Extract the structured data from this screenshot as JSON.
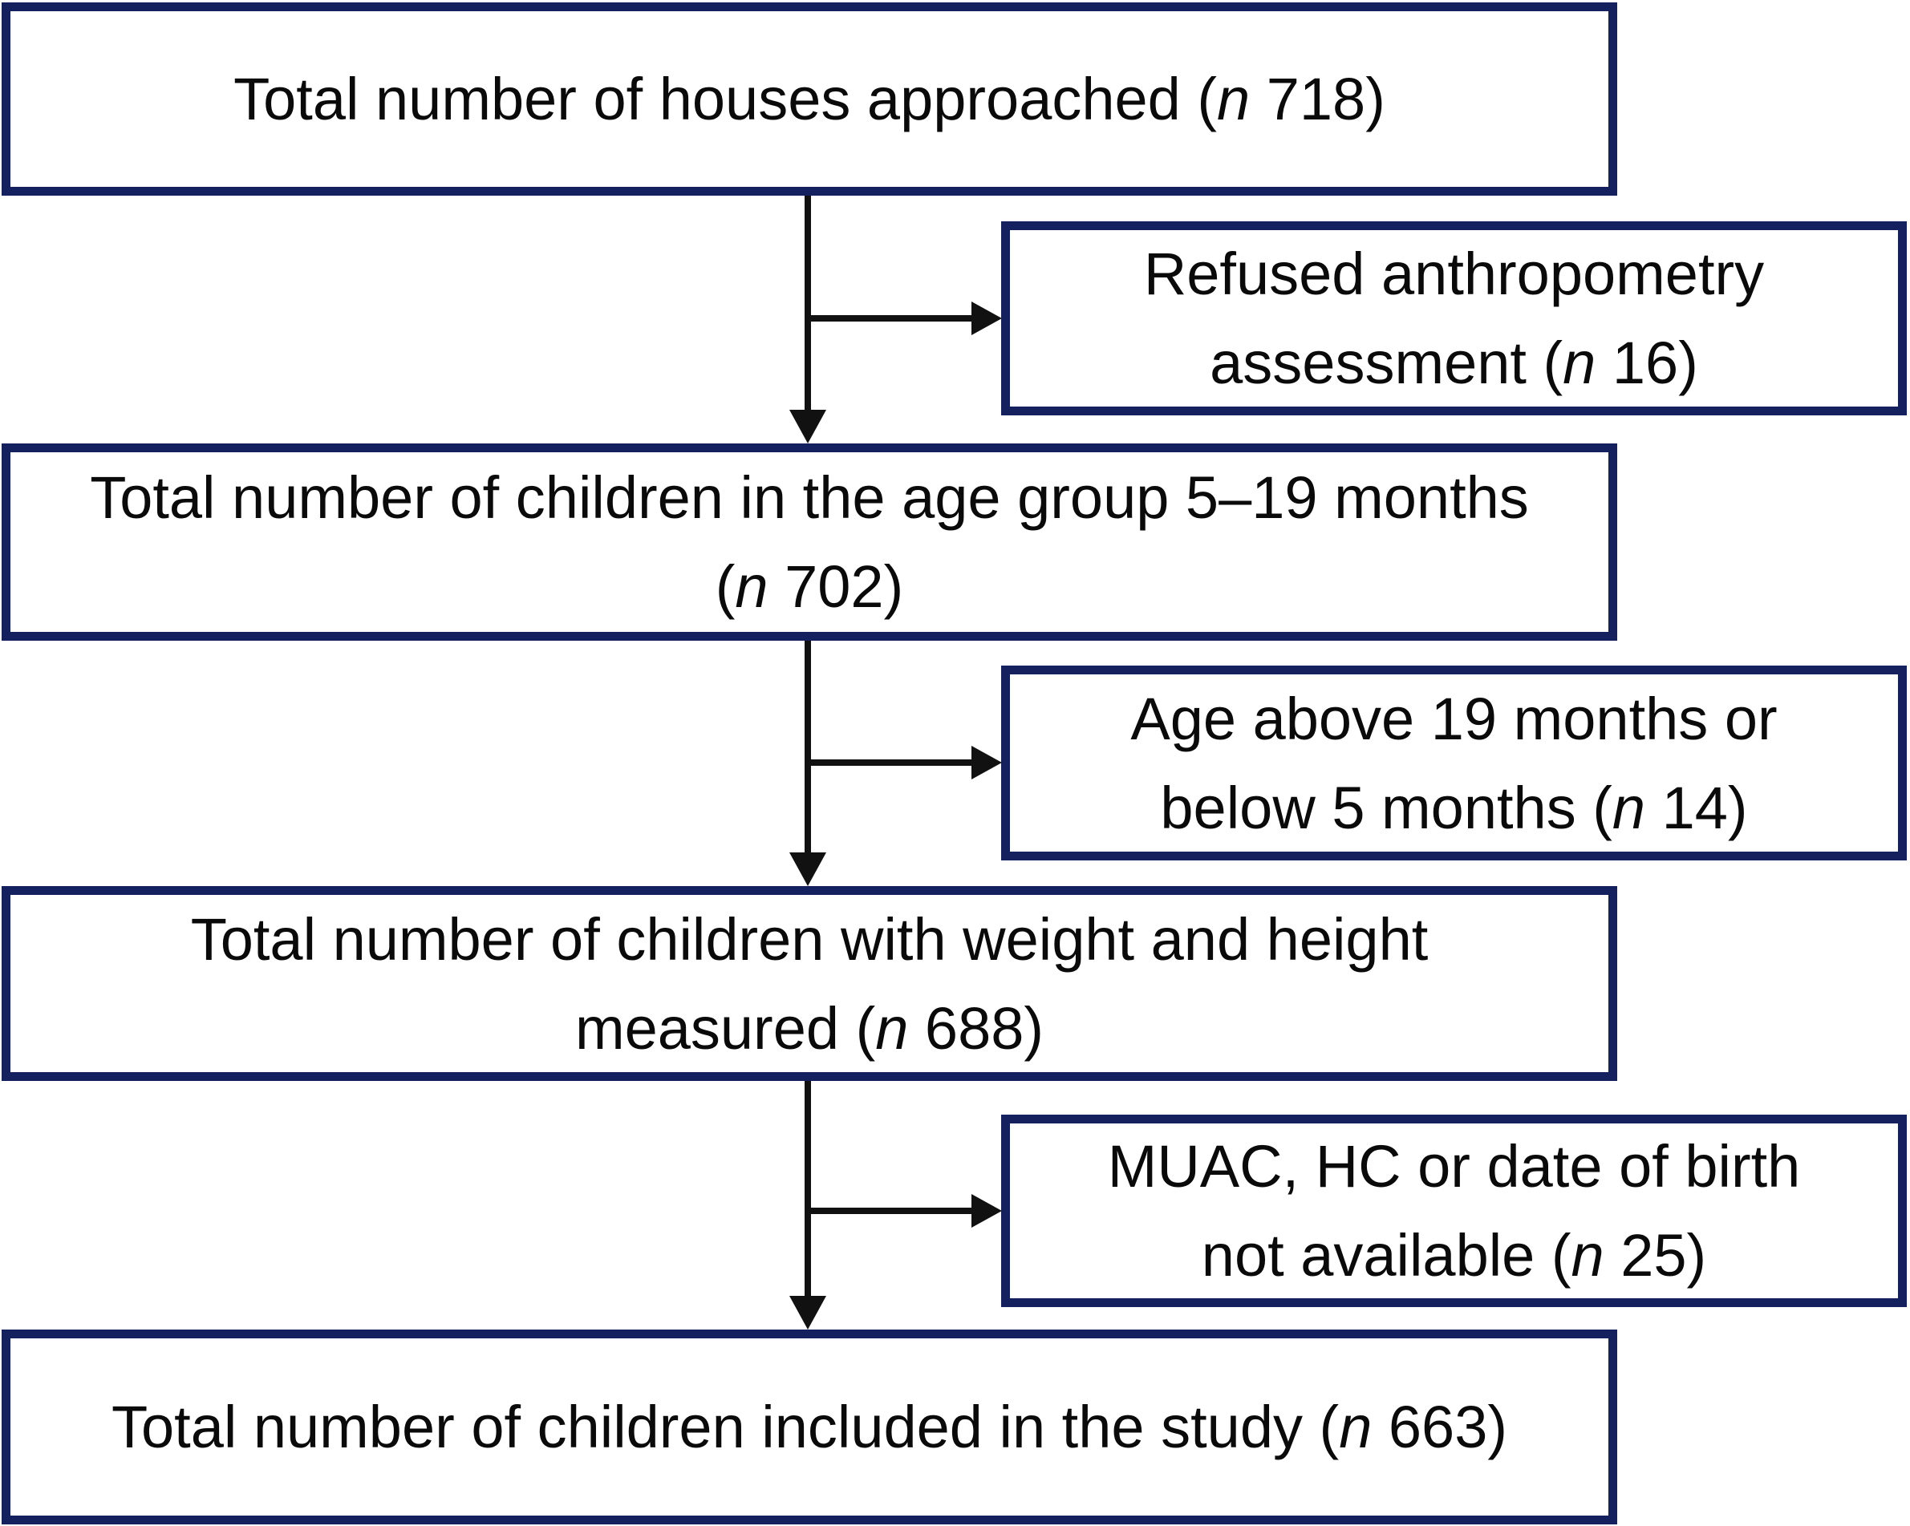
{
  "figure": {
    "type": "study-flow-diagram",
    "background": "#ffffff",
    "border_color": "#14215e",
    "line_color": "#111111",
    "text_color": "#0a0a0a"
  },
  "nodes": {
    "main": [
      {
        "name": "houses-approached",
        "lines": [
          [
            {
              "t": "Total number of houses approached ("
            },
            {
              "t": "n",
              "i": true
            },
            {
              "t": " 718)"
            }
          ]
        ]
      },
      {
        "name": "children-age-5-19-months",
        "lines": [
          [
            {
              "t": "Total number of children in the age group 5–19 months"
            }
          ],
          [
            {
              "t": "("
            },
            {
              "t": "n",
              "i": true
            },
            {
              "t": " 702)"
            }
          ]
        ]
      },
      {
        "name": "weight-height-measured",
        "lines": [
          [
            {
              "t": "Total number of children with weight and height"
            }
          ],
          [
            {
              "t": "measured ("
            },
            {
              "t": "n",
              "i": true
            },
            {
              "t": " 688)"
            }
          ]
        ]
      },
      {
        "name": "included-in-study",
        "lines": [
          [
            {
              "t": "Total number of children included in the study ("
            },
            {
              "t": "n",
              "i": true
            },
            {
              "t": " 663)"
            }
          ]
        ]
      }
    ],
    "side": [
      {
        "name": "refused-anthropometry",
        "lines": [
          [
            {
              "t": "Refused anthropometry"
            }
          ],
          [
            {
              "t": "assessment ("
            },
            {
              "t": "n",
              "i": true
            },
            {
              "t": " 16)"
            }
          ]
        ]
      },
      {
        "name": "age-outside-range",
        "lines": [
          [
            {
              "t": "Age above 19 months or"
            }
          ],
          [
            {
              "t": "below 5 months ("
            },
            {
              "t": "n",
              "i": true
            },
            {
              "t": " 14)"
            }
          ]
        ]
      },
      {
        "name": "muac-hc-dob-not-available",
        "lines": [
          [
            {
              "t": "MUAC, HC or date of birth"
            }
          ],
          [
            {
              "t": "not available ("
            },
            {
              "t": "n",
              "i": true
            },
            {
              "t": " 25)"
            }
          ]
        ]
      }
    ]
  },
  "counts": {
    "houses_approached": 718,
    "refused_anthropometry": 16,
    "children_5_19_months": 702,
    "age_outside_range": 14,
    "weight_height_measured": 688,
    "muac_hc_dob_not_available": 25,
    "included_in_study": 663
  }
}
